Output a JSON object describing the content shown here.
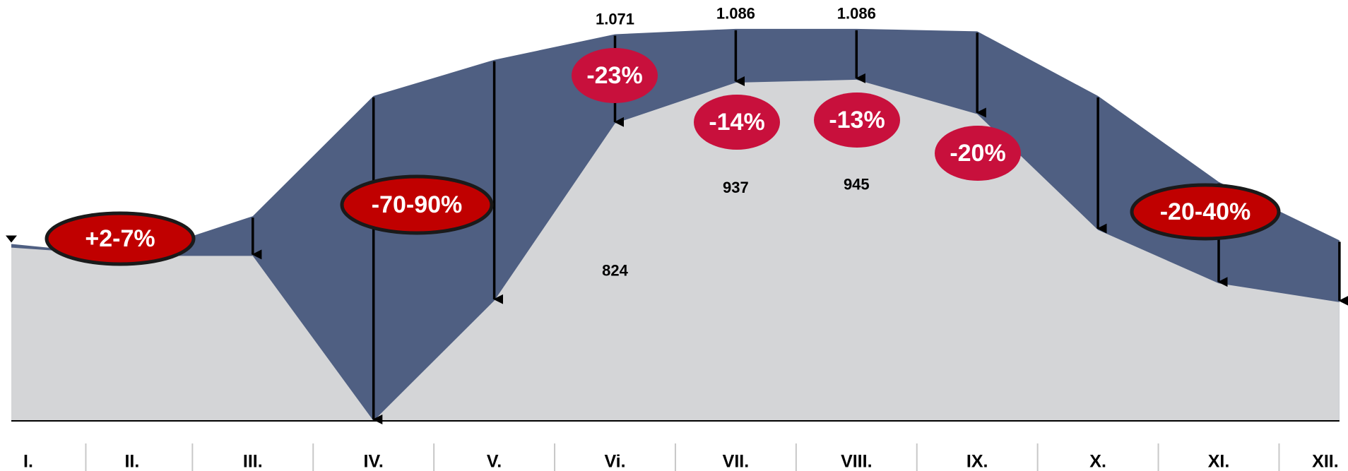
{
  "chart_data": {
    "type": "area",
    "categories": [
      "I.",
      "II.",
      "III.",
      "IV.",
      "V.",
      "Vi.",
      "VII.",
      "VIII.",
      "IX.",
      "X.",
      "XI.",
      "XII."
    ],
    "series": [
      {
        "color": "#4f5f82",
        "values": [
          490,
          457,
          567,
          900,
          1000,
          1071,
          1086,
          1086,
          1079,
          900,
          662,
          500
        ],
        "value_labels": [
          null,
          null,
          null,
          null,
          null,
          "1.071",
          "1.086",
          "1.086",
          null,
          null,
          null,
          null
        ]
      },
      {
        "color": "#d4d5d7",
        "values": [
          480,
          457,
          457,
          0,
          333,
          824,
          937,
          945,
          850,
          529,
          381,
          329
        ],
        "value_labels": [
          null,
          null,
          null,
          null,
          null,
          "824",
          "937",
          "945",
          null,
          null,
          null,
          null
        ]
      }
    ],
    "annotations": [
      "+2-7%",
      "-70-90%",
      "-23%",
      "-14%",
      "-13%",
      "-20%",
      "-20-40%"
    ],
    "ylim": [
      0,
      1160
    ]
  }
}
